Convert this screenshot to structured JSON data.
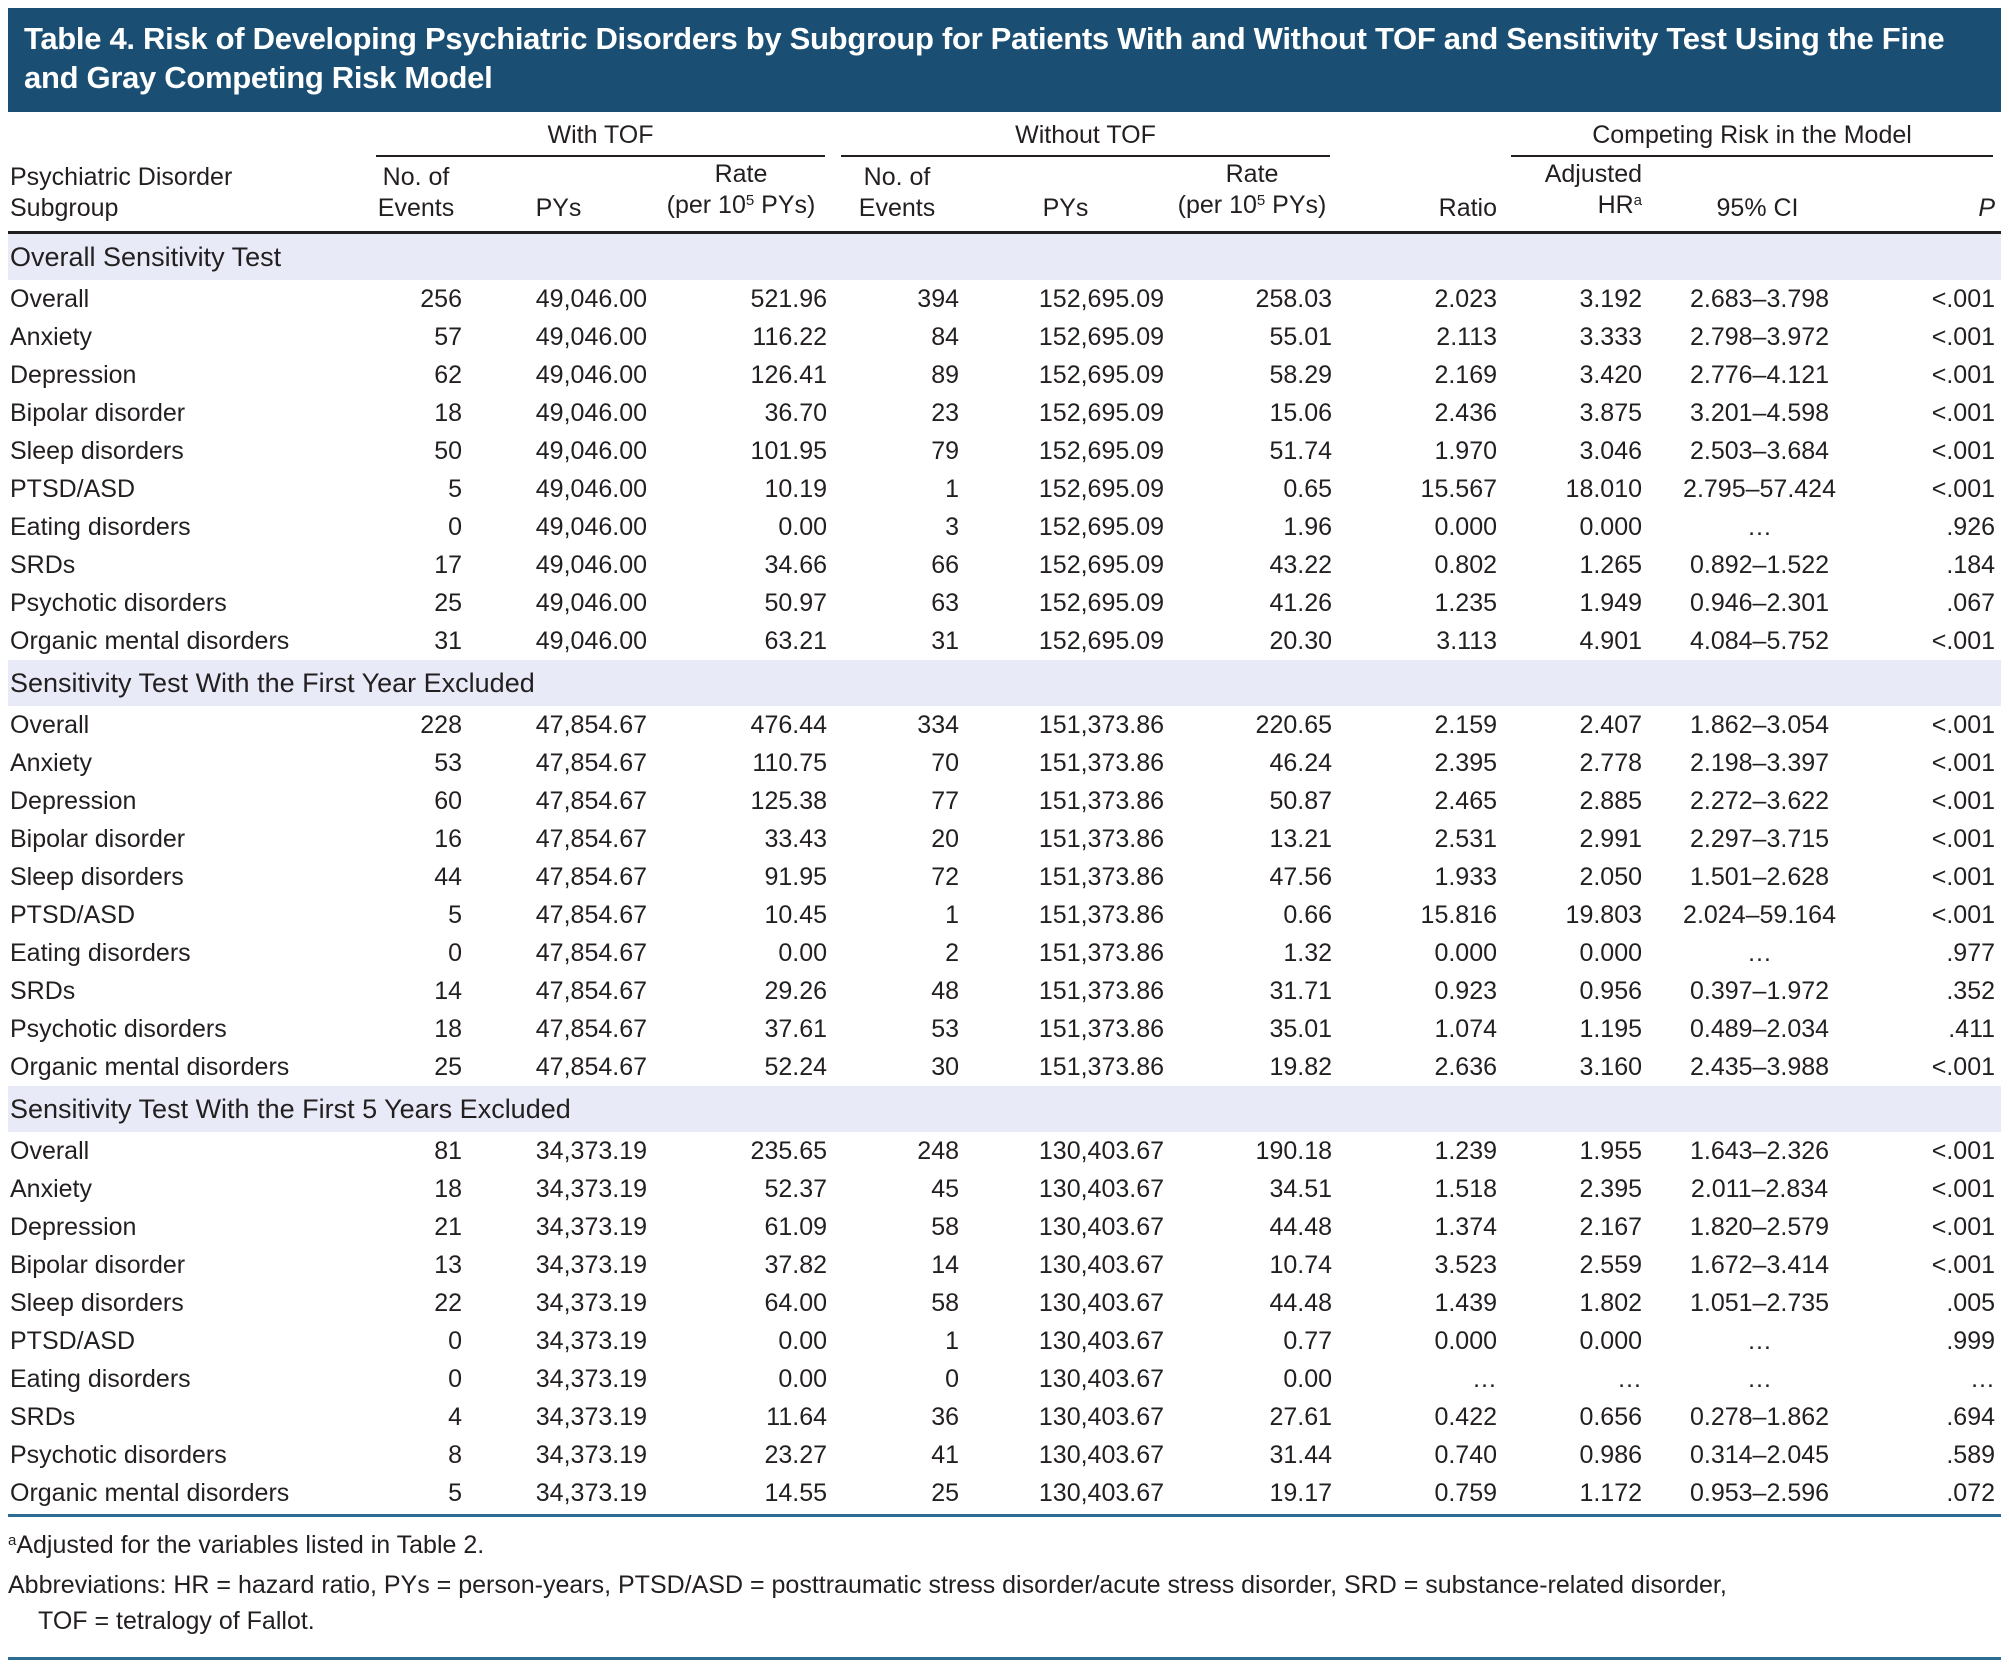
{
  "title": "Table 4. Risk of Developing Psychiatric Disorders by Subgroup for Patients With and Without TOF and Sensitivity Test Using the Fine and Gray Competing Risk Model",
  "header": {
    "group_with_tof": "With TOF",
    "group_without_tof": "Without TOF",
    "group_competing_risk": "Competing Risk in the Model",
    "col_subgroup_line1": "Psychiatric Disorder",
    "col_subgroup_line2": "Subgroup",
    "col_events_line1": "No. of",
    "col_events_line2": "Events",
    "col_pys": "PYs",
    "col_rate_line1": "Rate",
    "col_rate_line2_pre": "(per 10",
    "col_rate_sup": "5",
    "col_rate_line2_post": " PYs)",
    "col_ratio": "Ratio",
    "col_hr_line1": "Adjusted",
    "col_hr_line2_base": "HR",
    "col_hr_sup": "a",
    "col_ci": "95% CI",
    "col_p": "P"
  },
  "sections": [
    {
      "label": "Overall Sensitivity Test",
      "rows": [
        [
          "Overall",
          "256",
          "49,046.00",
          "521.96",
          "394",
          "152,695.09",
          "258.03",
          "2.023",
          "3.192",
          "2.683–3.798",
          "<.001"
        ],
        [
          "Anxiety",
          "57",
          "49,046.00",
          "116.22",
          "84",
          "152,695.09",
          "55.01",
          "2.113",
          "3.333",
          "2.798–3.972",
          "<.001"
        ],
        [
          "Depression",
          "62",
          "49,046.00",
          "126.41",
          "89",
          "152,695.09",
          "58.29",
          "2.169",
          "3.420",
          "2.776–4.121",
          "<.001"
        ],
        [
          "Bipolar disorder",
          "18",
          "49,046.00",
          "36.70",
          "23",
          "152,695.09",
          "15.06",
          "2.436",
          "3.875",
          "3.201–4.598",
          "<.001"
        ],
        [
          "Sleep disorders",
          "50",
          "49,046.00",
          "101.95",
          "79",
          "152,695.09",
          "51.74",
          "1.970",
          "3.046",
          "2.503–3.684",
          "<.001"
        ],
        [
          "PTSD/ASD",
          "5",
          "49,046.00",
          "10.19",
          "1",
          "152,695.09",
          "0.65",
          "15.567",
          "18.010",
          "2.795–57.424",
          "<.001"
        ],
        [
          "Eating disorders",
          "0",
          "49,046.00",
          "0.00",
          "3",
          "152,695.09",
          "1.96",
          "0.000",
          "0.000",
          "…",
          ".926"
        ],
        [
          "SRDs",
          "17",
          "49,046.00",
          "34.66",
          "66",
          "152,695.09",
          "43.22",
          "0.802",
          "1.265",
          "0.892–1.522",
          ".184"
        ],
        [
          "Psychotic disorders",
          "25",
          "49,046.00",
          "50.97",
          "63",
          "152,695.09",
          "41.26",
          "1.235",
          "1.949",
          "0.946–2.301",
          ".067"
        ],
        [
          "Organic mental disorders",
          "31",
          "49,046.00",
          "63.21",
          "31",
          "152,695.09",
          "20.30",
          "3.113",
          "4.901",
          "4.084–5.752",
          "<.001"
        ]
      ]
    },
    {
      "label": "Sensitivity Test With the First Year Excluded",
      "rows": [
        [
          "Overall",
          "228",
          "47,854.67",
          "476.44",
          "334",
          "151,373.86",
          "220.65",
          "2.159",
          "2.407",
          "1.862–3.054",
          "<.001"
        ],
        [
          "Anxiety",
          "53",
          "47,854.67",
          "110.75",
          "70",
          "151,373.86",
          "46.24",
          "2.395",
          "2.778",
          "2.198–3.397",
          "<.001"
        ],
        [
          "Depression",
          "60",
          "47,854.67",
          "125.38",
          "77",
          "151,373.86",
          "50.87",
          "2.465",
          "2.885",
          "2.272–3.622",
          "<.001"
        ],
        [
          "Bipolar disorder",
          "16",
          "47,854.67",
          "33.43",
          "20",
          "151,373.86",
          "13.21",
          "2.531",
          "2.991",
          "2.297–3.715",
          "<.001"
        ],
        [
          "Sleep disorders",
          "44",
          "47,854.67",
          "91.95",
          "72",
          "151,373.86",
          "47.56",
          "1.933",
          "2.050",
          "1.501–2.628",
          "<.001"
        ],
        [
          "PTSD/ASD",
          "5",
          "47,854.67",
          "10.45",
          "1",
          "151,373.86",
          "0.66",
          "15.816",
          "19.803",
          "2.024–59.164",
          "<.001"
        ],
        [
          "Eating disorders",
          "0",
          "47,854.67",
          "0.00",
          "2",
          "151,373.86",
          "1.32",
          "0.000",
          "0.000",
          "…",
          ".977"
        ],
        [
          "SRDs",
          "14",
          "47,854.67",
          "29.26",
          "48",
          "151,373.86",
          "31.71",
          "0.923",
          "0.956",
          "0.397–1.972",
          ".352"
        ],
        [
          "Psychotic disorders",
          "18",
          "47,854.67",
          "37.61",
          "53",
          "151,373.86",
          "35.01",
          "1.074",
          "1.195",
          "0.489–2.034",
          ".411"
        ],
        [
          "Organic mental disorders",
          "25",
          "47,854.67",
          "52.24",
          "30",
          "151,373.86",
          "19.82",
          "2.636",
          "3.160",
          "2.435–3.988",
          "<.001"
        ]
      ]
    },
    {
      "label": "Sensitivity Test With the First 5 Years Excluded",
      "rows": [
        [
          "Overall",
          "81",
          "34,373.19",
          "235.65",
          "248",
          "130,403.67",
          "190.18",
          "1.239",
          "1.955",
          "1.643–2.326",
          "<.001"
        ],
        [
          "Anxiety",
          "18",
          "34,373.19",
          "52.37",
          "45",
          "130,403.67",
          "34.51",
          "1.518",
          "2.395",
          "2.011–2.834",
          "<.001"
        ],
        [
          "Depression",
          "21",
          "34,373.19",
          "61.09",
          "58",
          "130,403.67",
          "44.48",
          "1.374",
          "2.167",
          "1.820–2.579",
          "<.001"
        ],
        [
          "Bipolar disorder",
          "13",
          "34,373.19",
          "37.82",
          "14",
          "130,403.67",
          "10.74",
          "3.523",
          "2.559",
          "1.672–3.414",
          "<.001"
        ],
        [
          "Sleep disorders",
          "22",
          "34,373.19",
          "64.00",
          "58",
          "130,403.67",
          "44.48",
          "1.439",
          "1.802",
          "1.051–2.735",
          ".005"
        ],
        [
          "PTSD/ASD",
          "0",
          "34,373.19",
          "0.00",
          "1",
          "130,403.67",
          "0.77",
          "0.000",
          "0.000",
          "…",
          ".999"
        ],
        [
          "Eating disorders",
          "0",
          "34,373.19",
          "0.00",
          "0",
          "130,403.67",
          "0.00",
          "…",
          "…",
          "…",
          "…"
        ],
        [
          "SRDs",
          "4",
          "34,373.19",
          "11.64",
          "36",
          "130,403.67",
          "27.61",
          "0.422",
          "0.656",
          "0.278–1.862",
          ".694"
        ],
        [
          "Psychotic disorders",
          "8",
          "34,373.19",
          "23.27",
          "41",
          "130,403.67",
          "31.44",
          "0.740",
          "0.986",
          "0.314–2.045",
          ".589"
        ],
        [
          "Organic mental disorders",
          "5",
          "34,373.19",
          "14.55",
          "25",
          "130,403.67",
          "19.17",
          "0.759",
          "1.172",
          "0.953–2.596",
          ".072"
        ]
      ]
    }
  ],
  "footnotes": {
    "marker": "a",
    "adjusted": "Adjusted for the variables listed in Table 2.",
    "abbreviations_line1": "Abbreviations: HR = hazard ratio, PYs = person-years, PTSD/ASD = posttraumatic stress disorder/acute stress disorder, SRD = substance-related disorder,",
    "abbreviations_line2": "TOF = tetralogy of Fallot."
  },
  "colors": {
    "title_bar_bg": "#1a4f73",
    "section_band_bg": "#e8ebf7",
    "rule_blue": "#2e6d93",
    "text_color": "#231f20"
  }
}
